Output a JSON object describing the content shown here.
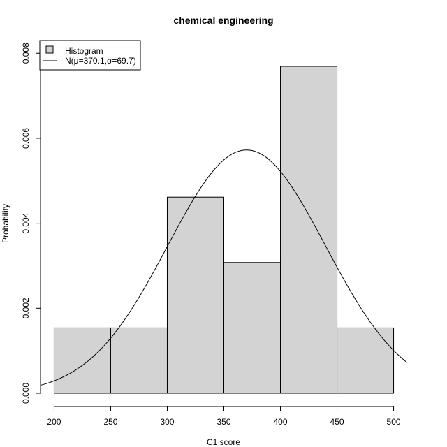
{
  "chart_data": {
    "type": "bar",
    "title": "chemical engineering",
    "xlabel": "C1 score",
    "ylabel": "Probability",
    "bins": [
      {
        "start": 200,
        "end": 250,
        "density": 0.001538
      },
      {
        "start": 250,
        "end": 300,
        "density": 0.001538
      },
      {
        "start": 300,
        "end": 350,
        "density": 0.004615
      },
      {
        "start": 350,
        "end": 400,
        "density": 0.003077
      },
      {
        "start": 400,
        "end": 450,
        "density": 0.007692
      },
      {
        "start": 450,
        "end": 500,
        "density": 0.001538
      }
    ],
    "curve": {
      "type": "normal",
      "mu": 370.1,
      "sigma": 69.7,
      "x_range": [
        188,
        512
      ]
    },
    "x_ticks": [
      200,
      250,
      300,
      350,
      400,
      450,
      500
    ],
    "y_ticks": [
      "0.000",
      "0.002",
      "0.004",
      "0.006",
      "0.008"
    ],
    "xlim": [
      188,
      512
    ],
    "ylim": [
      0,
      0.0083
    ],
    "bar_color": "#d3d3d3",
    "grid": false,
    "legend": {
      "placement": "top-left",
      "entries": [
        {
          "label": "Histogram",
          "kind": "box"
        },
        {
          "label": "N(μ=370.1,σ=69.7)",
          "kind": "line"
        }
      ]
    }
  }
}
